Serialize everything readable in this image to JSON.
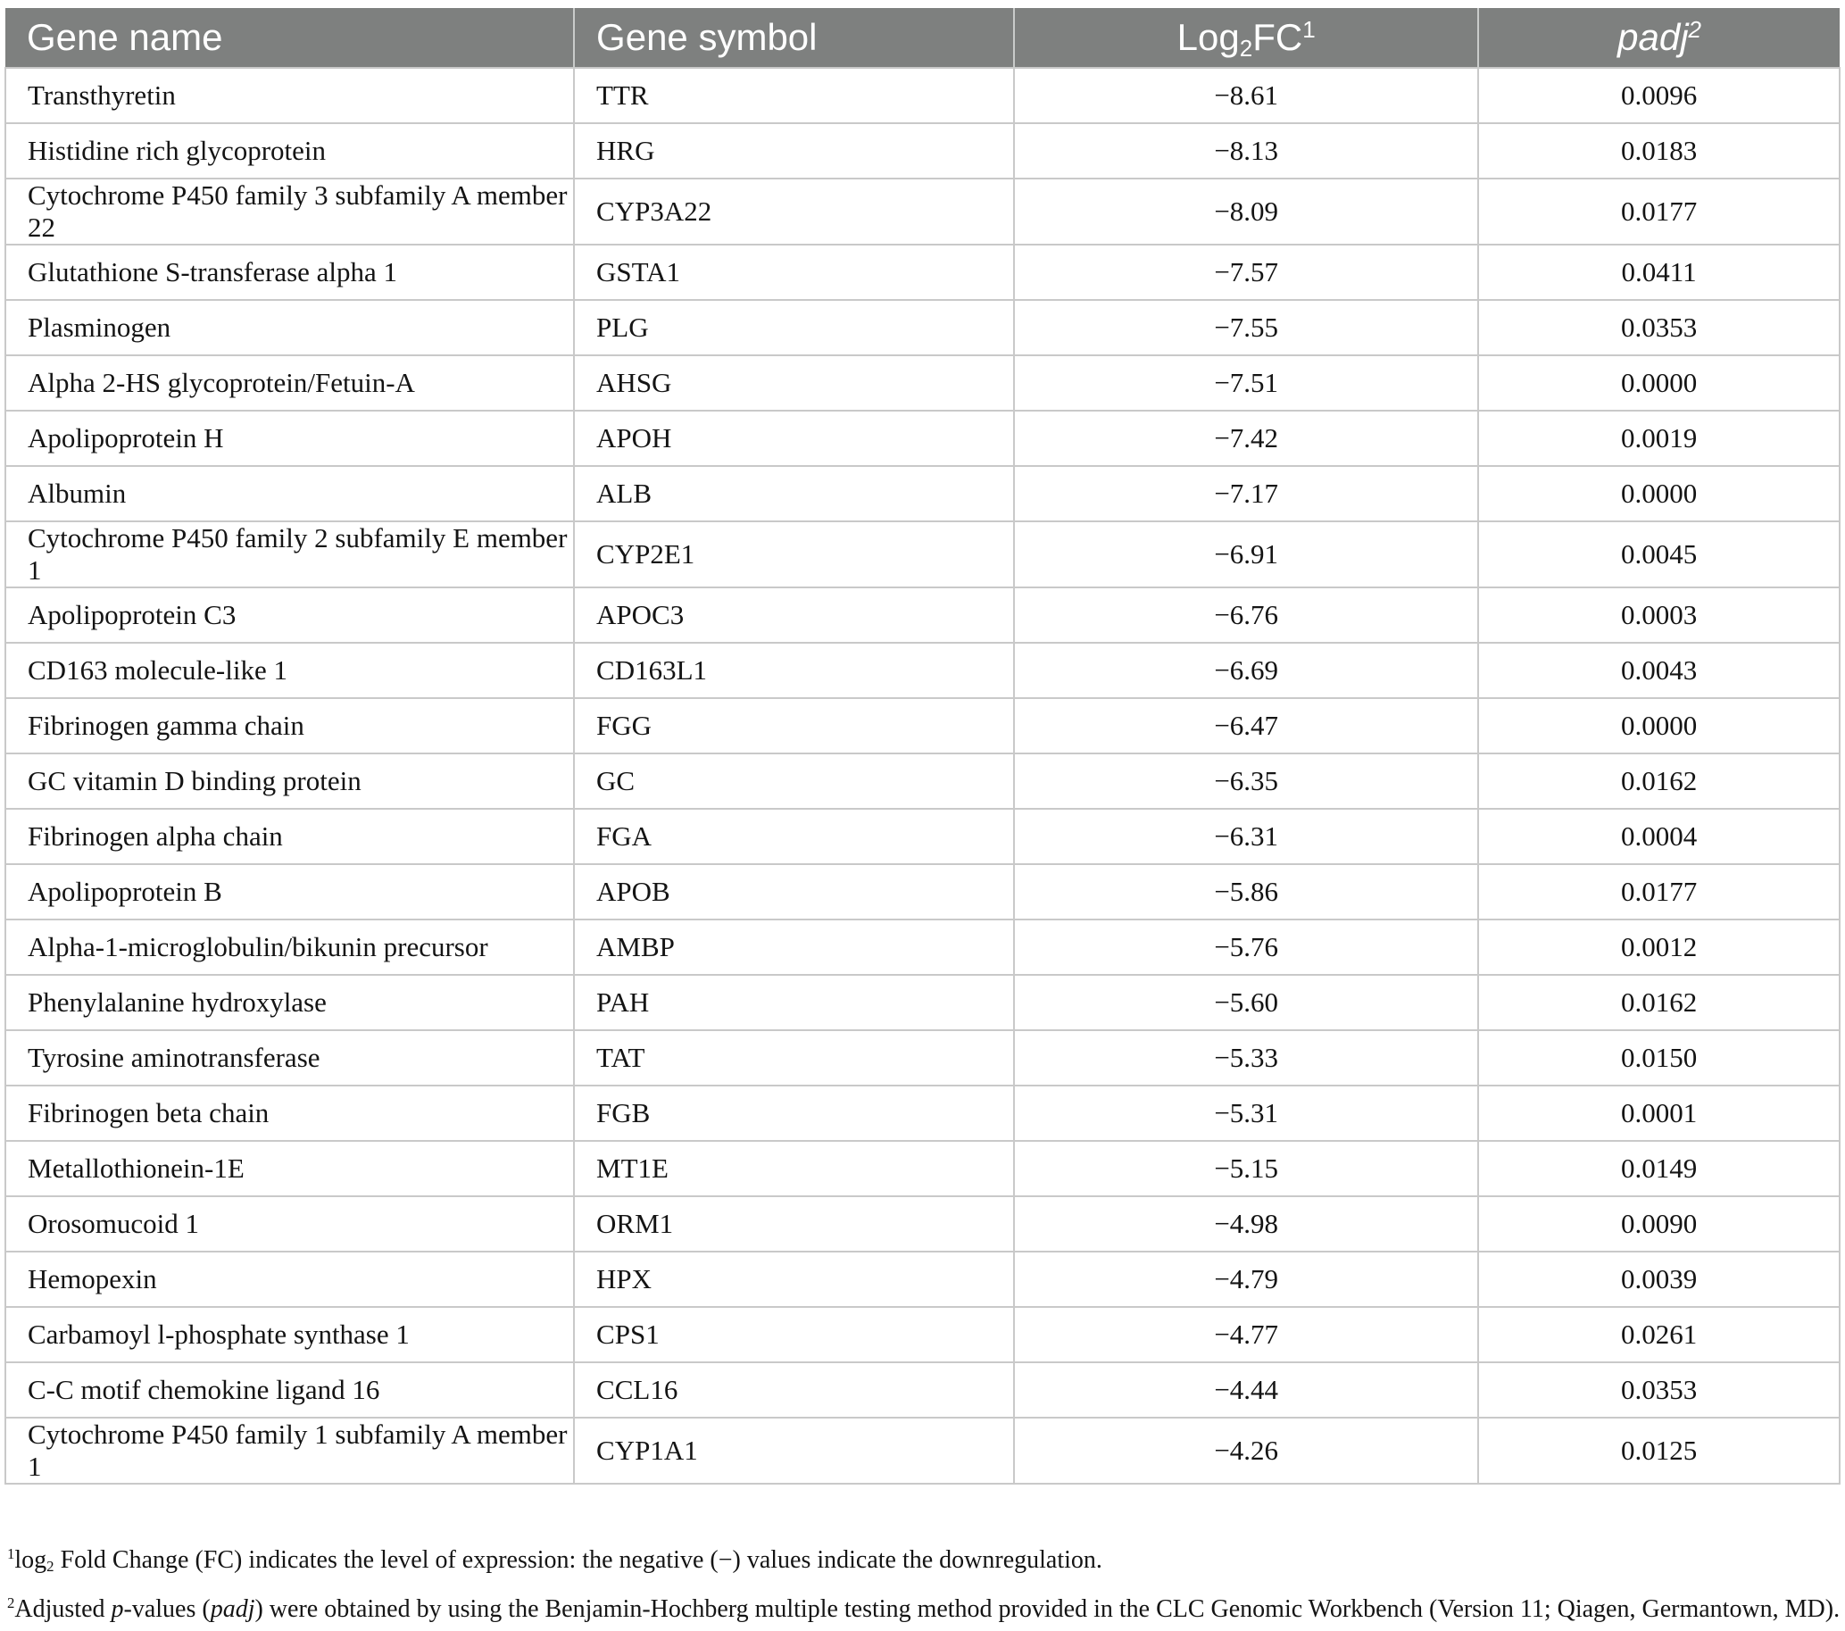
{
  "colors": {
    "header_background": "#7e807f",
    "header_text": "#ffffff",
    "grid_line": "#c9c9c9",
    "body_text": "#141414"
  },
  "table": {
    "header": {
      "gene_name": "Gene name",
      "gene_symbol": "Gene symbol",
      "log2fc": {
        "pre": "Log",
        "sub": "2",
        "mid": "FC",
        "sup": "1"
      },
      "padj": {
        "base": "padj",
        "sup": "2"
      }
    },
    "rows": [
      {
        "name": "Transthyretin",
        "symbol": "TTR",
        "log2fc": "−8.61",
        "padj": "0.0096"
      },
      {
        "name": "Histidine rich glycoprotein",
        "symbol": "HRG",
        "log2fc": "−8.13",
        "padj": "0.0183"
      },
      {
        "name": "Cytochrome P450 family 3 subfamily A member 22",
        "symbol": "CYP3A22",
        "log2fc": "−8.09",
        "padj": "0.0177"
      },
      {
        "name": "Glutathione S-transferase alpha 1",
        "symbol": "GSTA1",
        "log2fc": "−7.57",
        "padj": "0.0411"
      },
      {
        "name": "Plasminogen",
        "symbol": "PLG",
        "log2fc": "−7.55",
        "padj": "0.0353"
      },
      {
        "name": "Alpha 2-HS glycoprotein/Fetuin-A",
        "symbol": "AHSG",
        "log2fc": "−7.51",
        "padj": "0.0000"
      },
      {
        "name": "Apolipoprotein H",
        "symbol": "APOH",
        "log2fc": "−7.42",
        "padj": "0.0019"
      },
      {
        "name": "Albumin",
        "symbol": "ALB",
        "log2fc": "−7.17",
        "padj": "0.0000"
      },
      {
        "name": "Cytochrome P450 family 2 subfamily E member 1",
        "symbol": "CYP2E1",
        "log2fc": "−6.91",
        "padj": "0.0045"
      },
      {
        "name": "Apolipoprotein C3",
        "symbol": "APOC3",
        "log2fc": "−6.76",
        "padj": "0.0003"
      },
      {
        "name": "CD163 molecule-like 1",
        "symbol": "CD163L1",
        "log2fc": "−6.69",
        "padj": "0.0043"
      },
      {
        "name": "Fibrinogen gamma chain",
        "symbol": "FGG",
        "log2fc": "−6.47",
        "padj": "0.0000"
      },
      {
        "name": "GC vitamin D binding protein",
        "symbol": "GC",
        "log2fc": "−6.35",
        "padj": "0.0162"
      },
      {
        "name": "Fibrinogen alpha chain",
        "symbol": "FGA",
        "log2fc": "−6.31",
        "padj": "0.0004"
      },
      {
        "name": "Apolipoprotein B",
        "symbol": "APOB",
        "log2fc": "−5.86",
        "padj": "0.0177"
      },
      {
        "name": "Alpha-1-microglobulin/bikunin precursor",
        "symbol": "AMBP",
        "log2fc": "−5.76",
        "padj": "0.0012"
      },
      {
        "name": "Phenylalanine hydroxylase",
        "symbol": "PAH",
        "log2fc": "−5.60",
        "padj": "0.0162"
      },
      {
        "name": "Tyrosine aminotransferase",
        "symbol": "TAT",
        "log2fc": "−5.33",
        "padj": "0.0150"
      },
      {
        "name": "Fibrinogen beta chain",
        "symbol": "FGB",
        "log2fc": "−5.31",
        "padj": "0.0001"
      },
      {
        "name": "Metallothionein-1E",
        "symbol": "MT1E",
        "log2fc": "−5.15",
        "padj": "0.0149"
      },
      {
        "name": "Orosomucoid 1",
        "symbol": "ORM1",
        "log2fc": "−4.98",
        "padj": "0.0090"
      },
      {
        "name": "Hemopexin",
        "symbol": "HPX",
        "log2fc": "−4.79",
        "padj": "0.0039"
      },
      {
        "name": "Carbamoyl l-phosphate synthase 1",
        "symbol": "CPS1",
        "log2fc": "−4.77",
        "padj": "0.0261"
      },
      {
        "name": "C-C motif chemokine ligand 16",
        "symbol": "CCL16",
        "log2fc": "−4.44",
        "padj": "0.0353"
      },
      {
        "name": "Cytochrome P450 family 1 subfamily A member 1",
        "symbol": "CYP1A1",
        "log2fc": "−4.26",
        "padj": "0.0125"
      }
    ]
  },
  "footnotes": {
    "f1": {
      "sup": "1",
      "word": "log",
      "sub": "2",
      "rest": " Fold Change (FC) indicates the level of expression: the negative (−) values indicate the downregulation."
    },
    "f2": {
      "sup": "2",
      "pre": "Adjusted ",
      "p": "p",
      "mid": "-values (",
      "padj": "padj",
      "rest": ") were obtained by using the Benjamin-Hochberg multiple testing method provided in the CLC Genomic Workbench (Version 11; Qiagen, Germantown, MD)."
    }
  }
}
